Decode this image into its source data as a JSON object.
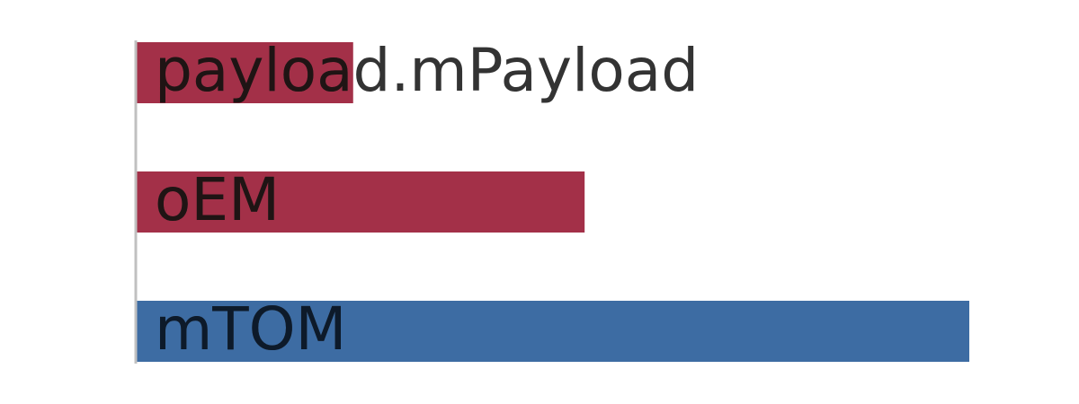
{
  "chart_data": {
    "type": "bar",
    "orientation": "horizontal",
    "title": "",
    "xlabel": "",
    "ylabel": "",
    "xlim": [
      0,
      1
    ],
    "grid": false,
    "legend": "none",
    "categories": [
      "payload.mPayload",
      "oEM",
      "mTOM"
    ],
    "values": [
      0.26,
      0.538,
      1.0
    ],
    "colors": [
      "#a33048",
      "#a33048",
      "#3d6ca3"
    ],
    "label_color_on_bar": "#1f1414",
    "label_color_on_bar_blue": "#0d1a2a",
    "label_color_off_bar": "#333333",
    "axis_color": "#c0c0c0"
  }
}
